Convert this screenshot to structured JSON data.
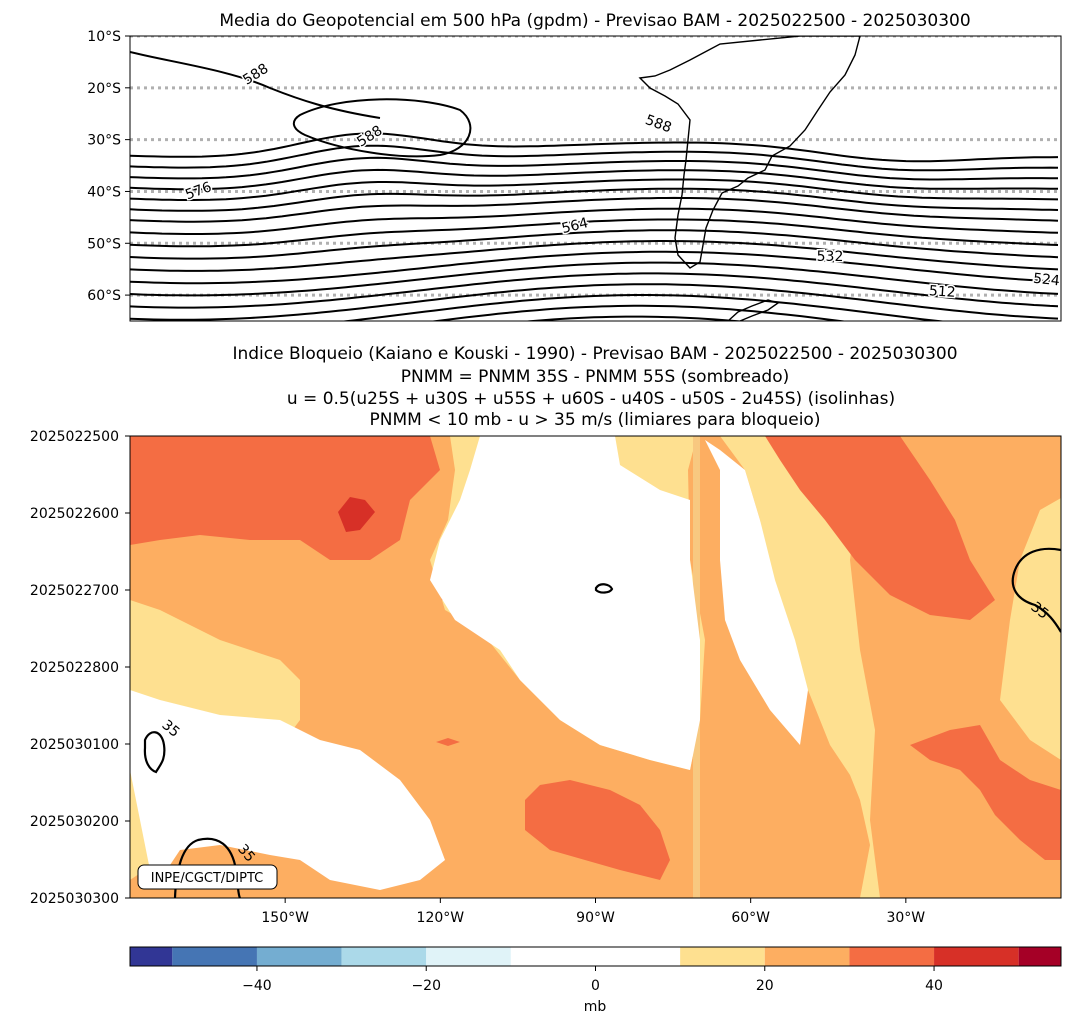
{
  "chart_data": [
    {
      "type": "contour-map",
      "title": "Media do Geopotencial em 500 hPa (gpdm) - Previsao BAM - 2025022500 - 2025030300",
      "y_ticks": [
        "10°S",
        "20°S",
        "30°S",
        "40°S",
        "50°S",
        "60°S"
      ],
      "y_tick_values": [
        -10,
        -20,
        -30,
        -40,
        -50,
        -60
      ],
      "ylim": [
        -65,
        -10
      ],
      "xlim": [
        -180,
        0
      ],
      "grid": "dotted latitude lines",
      "contour_labels": [
        "588",
        "588",
        "588",
        "576",
        "564",
        "532",
        "512",
        "524"
      ],
      "contour_interval_gpdm": 4
    },
    {
      "type": "heatmap",
      "title_lines": [
        "Indice Bloqueio (Kaiano e Kouski - 1990) - Previsao BAM - 2025022500 - 2025030300",
        "PNMM = PNMM 35S - PNMM 55S (sombreado)",
        "u = 0.5(u25S + u30S + u55S + u60S - u40S - u50S - 2u45S) (isolinhas)",
        "PNMM < 10 mb - u > 35 m/s (limiares para bloqueio)"
      ],
      "y_ticks": [
        "2025022500",
        "2025022600",
        "2025022700",
        "2025022800",
        "2025030100",
        "2025030200",
        "2025030300"
      ],
      "x_ticks": [
        "150°W",
        "120°W",
        "90°W",
        "60°W",
        "30°W"
      ],
      "x_tick_values": [
        -150,
        -120,
        -90,
        -60,
        -30
      ],
      "xlim": [
        -180,
        0
      ],
      "contour_labels": [
        "35",
        "35",
        "35"
      ],
      "credit": "INPE/CGCT/DIPTC"
    },
    {
      "type": "colorbar",
      "levels": [
        -55,
        -50,
        -40,
        -30,
        -20,
        -10,
        10,
        20,
        30,
        40,
        50,
        55
      ],
      "colors": [
        "#313695",
        "#4575b4",
        "#74add1",
        "#abd9e9",
        "#e0f3f8",
        "#ffffff",
        "#fee090",
        "#fdae61",
        "#f46d43",
        "#d73027",
        "#a50026"
      ],
      "ticks": [
        "−40",
        "−20",
        "0",
        "20",
        "40"
      ],
      "tick_values": [
        -40,
        -20,
        0,
        20,
        40
      ],
      "label": "mb"
    }
  ]
}
